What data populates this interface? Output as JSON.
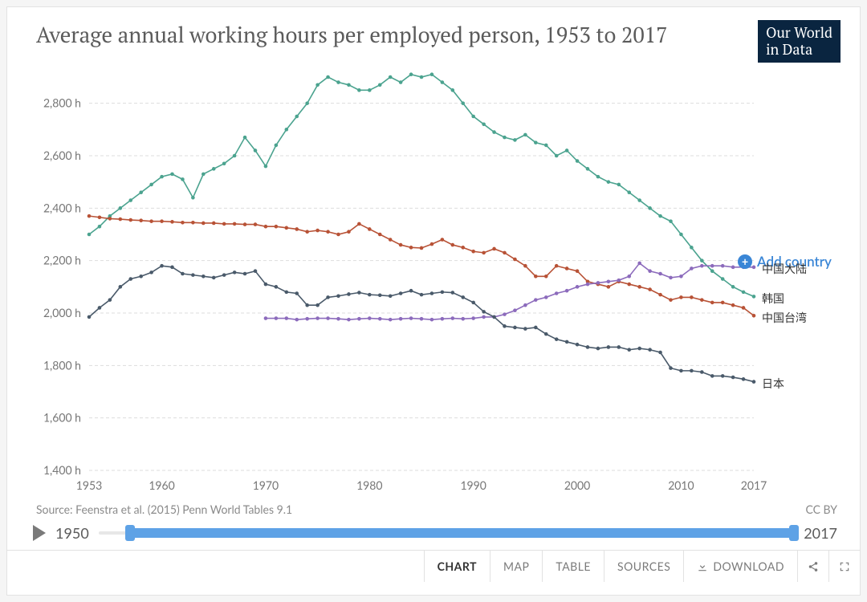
{
  "header": {
    "title": "Average annual working hours per employed person, 1953 to 2017",
    "logo_line1": "Our World",
    "logo_line2": "in Data"
  },
  "chart": {
    "type": "line",
    "background_color": "#ffffff",
    "grid_color": "#dddddd",
    "grid_dash": "4,3",
    "axis_text_color": "#767676",
    "axis_fontsize": 14,
    "title_fontsize": 27,
    "x": {
      "lim": [
        1953,
        2017
      ],
      "ticks": [
        1953,
        1960,
        1970,
        1980,
        1990,
        2000,
        2010,
        2017
      ]
    },
    "y": {
      "lim": [
        1400,
        2900
      ],
      "ticks": [
        1400,
        1600,
        1800,
        2000,
        2200,
        2400,
        2600,
        2800
      ],
      "suffix": " h"
    },
    "marker_radius": 2.3,
    "line_width": 1.6,
    "series": [
      {
        "id": "korea",
        "label": "韩国",
        "color": "#4ba38f",
        "x": [
          1953,
          1954,
          1955,
          1956,
          1957,
          1958,
          1959,
          1960,
          1961,
          1962,
          1963,
          1964,
          1965,
          1966,
          1967,
          1968,
          1969,
          1970,
          1971,
          1972,
          1973,
          1974,
          1975,
          1976,
          1977,
          1978,
          1979,
          1980,
          1981,
          1982,
          1983,
          1984,
          1985,
          1986,
          1987,
          1988,
          1989,
          1990,
          1991,
          1992,
          1993,
          1994,
          1995,
          1996,
          1997,
          1998,
          1999,
          2000,
          2001,
          2002,
          2003,
          2004,
          2005,
          2006,
          2007,
          2008,
          2009,
          2010,
          2011,
          2012,
          2013,
          2014,
          2015,
          2016,
          2017
        ],
        "y": [
          2300,
          2330,
          2370,
          2400,
          2430,
          2460,
          2490,
          2520,
          2530,
          2510,
          2440,
          2530,
          2550,
          2570,
          2600,
          2670,
          2620,
          2560,
          2640,
          2700,
          2750,
          2800,
          2870,
          2900,
          2880,
          2870,
          2850,
          2850,
          2870,
          2900,
          2880,
          2910,
          2900,
          2910,
          2880,
          2850,
          2800,
          2750,
          2720,
          2690,
          2670,
          2660,
          2680,
          2650,
          2640,
          2600,
          2620,
          2580,
          2550,
          2520,
          2500,
          2490,
          2460,
          2430,
          2400,
          2370,
          2350,
          2300,
          2250,
          2200,
          2160,
          2130,
          2100,
          2080,
          2063
        ]
      },
      {
        "id": "taiwan",
        "label": "中国台湾",
        "color": "#b85236",
        "x": [
          1953,
          1954,
          1955,
          1956,
          1957,
          1958,
          1959,
          1960,
          1961,
          1962,
          1963,
          1964,
          1965,
          1966,
          1967,
          1968,
          1969,
          1970,
          1971,
          1972,
          1973,
          1974,
          1975,
          1976,
          1977,
          1978,
          1979,
          1980,
          1981,
          1982,
          1983,
          1984,
          1985,
          1986,
          1987,
          1988,
          1989,
          1990,
          1991,
          1992,
          1993,
          1994,
          1995,
          1996,
          1997,
          1998,
          1999,
          2000,
          2001,
          2002,
          2003,
          2004,
          2005,
          2006,
          2007,
          2008,
          2009,
          2010,
          2011,
          2012,
          2013,
          2014,
          2015,
          2016,
          2017
        ],
        "y": [
          2370,
          2365,
          2360,
          2358,
          2355,
          2353,
          2350,
          2350,
          2348,
          2345,
          2345,
          2343,
          2343,
          2340,
          2340,
          2338,
          2338,
          2330,
          2330,
          2325,
          2320,
          2310,
          2315,
          2310,
          2300,
          2310,
          2340,
          2320,
          2300,
          2280,
          2260,
          2250,
          2248,
          2263,
          2280,
          2260,
          2250,
          2235,
          2230,
          2245,
          2230,
          2205,
          2180,
          2140,
          2140,
          2180,
          2170,
          2160,
          2120,
          2110,
          2100,
          2120,
          2110,
          2100,
          2090,
          2070,
          2050,
          2060,
          2060,
          2050,
          2040,
          2040,
          2030,
          2020,
          1990
        ]
      },
      {
        "id": "china",
        "label": "中国大陆",
        "color": "#8c6bbc",
        "x": [
          1970,
          1971,
          1972,
          1973,
          1974,
          1975,
          1976,
          1977,
          1978,
          1979,
          1980,
          1981,
          1982,
          1983,
          1984,
          1985,
          1986,
          1987,
          1988,
          1989,
          1990,
          1991,
          1992,
          1993,
          1994,
          1995,
          1996,
          1997,
          1998,
          1999,
          2000,
          2001,
          2002,
          2003,
          2004,
          2005,
          2006,
          2007,
          2008,
          2009,
          2010,
          2011,
          2012,
          2013,
          2014,
          2015,
          2016,
          2017
        ],
        "y": [
          1980,
          1980,
          1980,
          1975,
          1978,
          1980,
          1980,
          1978,
          1975,
          1978,
          1980,
          1978,
          1975,
          1978,
          1980,
          1978,
          1975,
          1978,
          1980,
          1978,
          1980,
          1985,
          1985,
          1995,
          2010,
          2030,
          2050,
          2060,
          2075,
          2085,
          2100,
          2110,
          2115,
          2120,
          2125,
          2140,
          2190,
          2160,
          2150,
          2135,
          2140,
          2170,
          2180,
          2180,
          2180,
          2175,
          2175,
          2175
        ]
      },
      {
        "id": "japan",
        "label": "日本",
        "color": "#4a5a6a",
        "x": [
          1953,
          1954,
          1955,
          1956,
          1957,
          1958,
          1959,
          1960,
          1961,
          1962,
          1963,
          1964,
          1965,
          1966,
          1967,
          1968,
          1969,
          1970,
          1971,
          1972,
          1973,
          1974,
          1975,
          1976,
          1977,
          1978,
          1979,
          1980,
          1981,
          1982,
          1983,
          1984,
          1985,
          1986,
          1987,
          1988,
          1989,
          1990,
          1991,
          1992,
          1993,
          1994,
          1995,
          1996,
          1997,
          1998,
          1999,
          2000,
          2001,
          2002,
          2003,
          2004,
          2005,
          2006,
          2007,
          2008,
          2009,
          2010,
          2011,
          2012,
          2013,
          2014,
          2015,
          2016,
          2017
        ],
        "y": [
          1985,
          2020,
          2050,
          2100,
          2130,
          2140,
          2155,
          2180,
          2175,
          2150,
          2145,
          2140,
          2135,
          2145,
          2155,
          2150,
          2160,
          2110,
          2100,
          2080,
          2075,
          2030,
          2030,
          2060,
          2065,
          2072,
          2078,
          2070,
          2068,
          2065,
          2075,
          2085,
          2070,
          2075,
          2080,
          2078,
          2060,
          2040,
          2005,
          1985,
          1950,
          1945,
          1940,
          1945,
          1920,
          1900,
          1890,
          1880,
          1870,
          1865,
          1870,
          1870,
          1860,
          1865,
          1860,
          1850,
          1790,
          1780,
          1780,
          1775,
          1760,
          1760,
          1755,
          1748,
          1738
        ]
      }
    ],
    "add_country_label": "Add country",
    "add_country_color": "#3a86d6"
  },
  "footer": {
    "source": "Source: Feenstra et al. (2015) Penn World Tables 9.1",
    "license": "CC BY"
  },
  "timeline": {
    "start": 1950,
    "end": 2017,
    "range_start": 1953,
    "range_end": 2017,
    "track_color": "#e7e7e7",
    "fill_color": "#5ea2e6"
  },
  "tabs": {
    "items": [
      {
        "id": "chart",
        "label": "CHART",
        "active": true
      },
      {
        "id": "map",
        "label": "MAP",
        "active": false
      },
      {
        "id": "table",
        "label": "TABLE",
        "active": false
      },
      {
        "id": "sources",
        "label": "SOURCES",
        "active": false
      },
      {
        "id": "download",
        "label": "DOWNLOAD",
        "active": false,
        "icon": "download"
      }
    ],
    "extras": [
      {
        "id": "share",
        "icon": "share"
      },
      {
        "id": "fullscreen",
        "icon": "fullscreen"
      }
    ]
  }
}
